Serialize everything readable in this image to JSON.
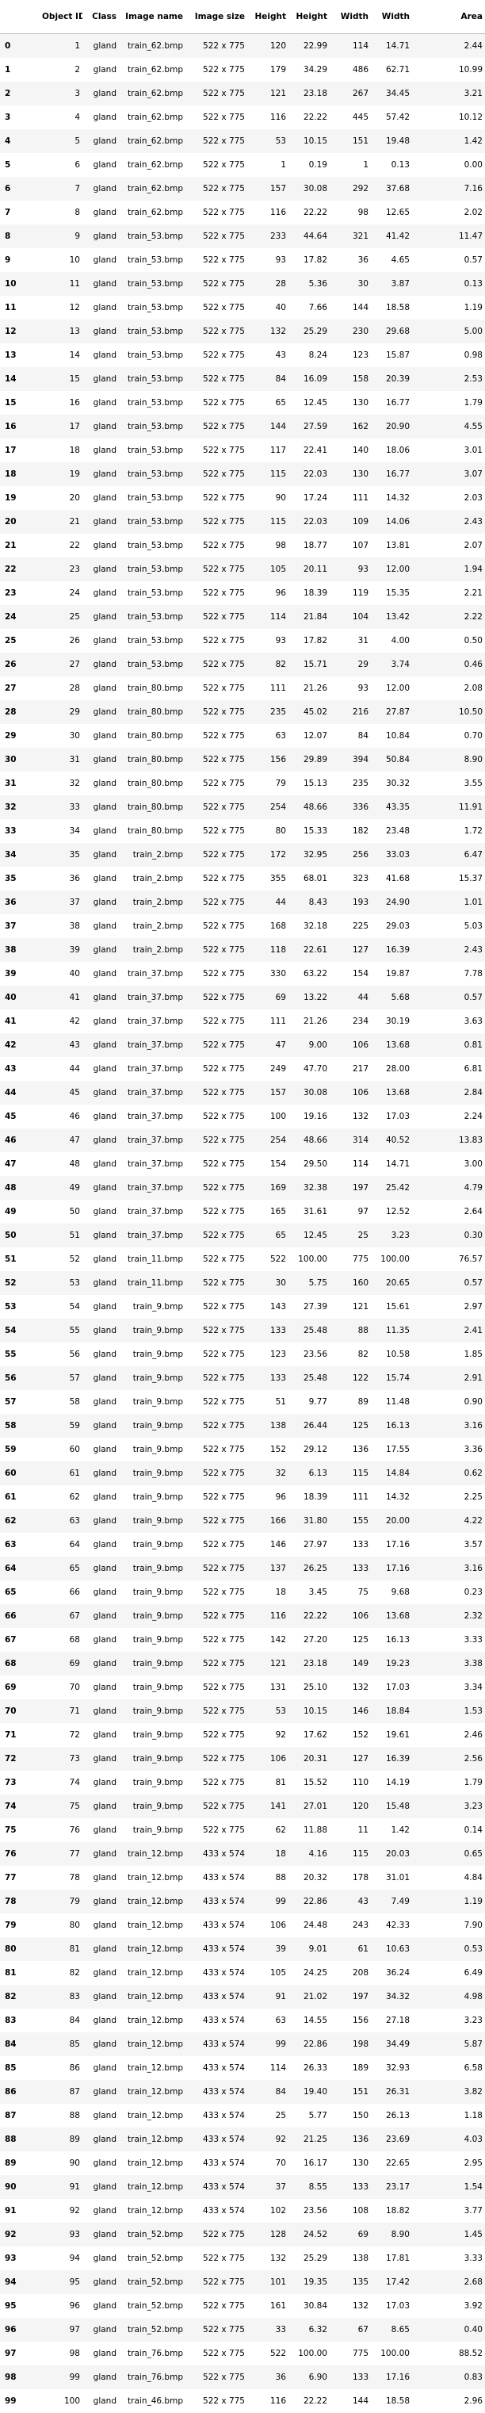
{
  "table": {
    "columns": [
      "",
      "Object ID",
      "Class",
      "Image name",
      "Image size",
      "Height",
      "Height",
      "Width",
      "Width",
      "Area"
    ],
    "rows": [
      [
        "0",
        "1",
        "gland",
        "train_62.bmp",
        "522 x 775",
        "120",
        "22.99",
        "114",
        "14.71",
        "2.44"
      ],
      [
        "1",
        "2",
        "gland",
        "train_62.bmp",
        "522 x 775",
        "179",
        "34.29",
        "486",
        "62.71",
        "10.99"
      ],
      [
        "2",
        "3",
        "gland",
        "train_62.bmp",
        "522 x 775",
        "121",
        "23.18",
        "267",
        "34.45",
        "3.21"
      ],
      [
        "3",
        "4",
        "gland",
        "train_62.bmp",
        "522 x 775",
        "116",
        "22.22",
        "445",
        "57.42",
        "10.12"
      ],
      [
        "4",
        "5",
        "gland",
        "train_62.bmp",
        "522 x 775",
        "53",
        "10.15",
        "151",
        "19.48",
        "1.42"
      ],
      [
        "5",
        "6",
        "gland",
        "train_62.bmp",
        "522 x 775",
        "1",
        "0.19",
        "1",
        "0.13",
        "0.00"
      ],
      [
        "6",
        "7",
        "gland",
        "train_62.bmp",
        "522 x 775",
        "157",
        "30.08",
        "292",
        "37.68",
        "7.16"
      ],
      [
        "7",
        "8",
        "gland",
        "train_62.bmp",
        "522 x 775",
        "116",
        "22.22",
        "98",
        "12.65",
        "2.02"
      ],
      [
        "8",
        "9",
        "gland",
        "train_53.bmp",
        "522 x 775",
        "233",
        "44.64",
        "321",
        "41.42",
        "11.47"
      ],
      [
        "9",
        "10",
        "gland",
        "train_53.bmp",
        "522 x 775",
        "93",
        "17.82",
        "36",
        "4.65",
        "0.57"
      ],
      [
        "10",
        "11",
        "gland",
        "train_53.bmp",
        "522 x 775",
        "28",
        "5.36",
        "30",
        "3.87",
        "0.13"
      ],
      [
        "11",
        "12",
        "gland",
        "train_53.bmp",
        "522 x 775",
        "40",
        "7.66",
        "144",
        "18.58",
        "1.19"
      ],
      [
        "12",
        "13",
        "gland",
        "train_53.bmp",
        "522 x 775",
        "132",
        "25.29",
        "230",
        "29.68",
        "5.00"
      ],
      [
        "13",
        "14",
        "gland",
        "train_53.bmp",
        "522 x 775",
        "43",
        "8.24",
        "123",
        "15.87",
        "0.98"
      ],
      [
        "14",
        "15",
        "gland",
        "train_53.bmp",
        "522 x 775",
        "84",
        "16.09",
        "158",
        "20.39",
        "2.53"
      ],
      [
        "15",
        "16",
        "gland",
        "train_53.bmp",
        "522 x 775",
        "65",
        "12.45",
        "130",
        "16.77",
        "1.79"
      ],
      [
        "16",
        "17",
        "gland",
        "train_53.bmp",
        "522 x 775",
        "144",
        "27.59",
        "162",
        "20.90",
        "4.55"
      ],
      [
        "17",
        "18",
        "gland",
        "train_53.bmp",
        "522 x 775",
        "117",
        "22.41",
        "140",
        "18.06",
        "3.01"
      ],
      [
        "18",
        "19",
        "gland",
        "train_53.bmp",
        "522 x 775",
        "115",
        "22.03",
        "130",
        "16.77",
        "3.07"
      ],
      [
        "19",
        "20",
        "gland",
        "train_53.bmp",
        "522 x 775",
        "90",
        "17.24",
        "111",
        "14.32",
        "2.03"
      ],
      [
        "20",
        "21",
        "gland",
        "train_53.bmp",
        "522 x 775",
        "115",
        "22.03",
        "109",
        "14.06",
        "2.43"
      ],
      [
        "21",
        "22",
        "gland",
        "train_53.bmp",
        "522 x 775",
        "98",
        "18.77",
        "107",
        "13.81",
        "2.07"
      ],
      [
        "22",
        "23",
        "gland",
        "train_53.bmp",
        "522 x 775",
        "105",
        "20.11",
        "93",
        "12.00",
        "1.94"
      ],
      [
        "23",
        "24",
        "gland",
        "train_53.bmp",
        "522 x 775",
        "96",
        "18.39",
        "119",
        "15.35",
        "2.21"
      ],
      [
        "24",
        "25",
        "gland",
        "train_53.bmp",
        "522 x 775",
        "114",
        "21.84",
        "104",
        "13.42",
        "2.22"
      ],
      [
        "25",
        "26",
        "gland",
        "train_53.bmp",
        "522 x 775",
        "93",
        "17.82",
        "31",
        "4.00",
        "0.50"
      ],
      [
        "26",
        "27",
        "gland",
        "train_53.bmp",
        "522 x 775",
        "82",
        "15.71",
        "29",
        "3.74",
        "0.46"
      ],
      [
        "27",
        "28",
        "gland",
        "train_80.bmp",
        "522 x 775",
        "111",
        "21.26",
        "93",
        "12.00",
        "2.08"
      ],
      [
        "28",
        "29",
        "gland",
        "train_80.bmp",
        "522 x 775",
        "235",
        "45.02",
        "216",
        "27.87",
        "10.50"
      ],
      [
        "29",
        "30",
        "gland",
        "train_80.bmp",
        "522 x 775",
        "63",
        "12.07",
        "84",
        "10.84",
        "0.70"
      ],
      [
        "30",
        "31",
        "gland",
        "train_80.bmp",
        "522 x 775",
        "156",
        "29.89",
        "394",
        "50.84",
        "8.90"
      ],
      [
        "31",
        "32",
        "gland",
        "train_80.bmp",
        "522 x 775",
        "79",
        "15.13",
        "235",
        "30.32",
        "3.55"
      ],
      [
        "32",
        "33",
        "gland",
        "train_80.bmp",
        "522 x 775",
        "254",
        "48.66",
        "336",
        "43.35",
        "11.91"
      ],
      [
        "33",
        "34",
        "gland",
        "train_80.bmp",
        "522 x 775",
        "80",
        "15.33",
        "182",
        "23.48",
        "1.72"
      ],
      [
        "34",
        "35",
        "gland",
        "train_2.bmp",
        "522 x 775",
        "172",
        "32.95",
        "256",
        "33.03",
        "6.47"
      ],
      [
        "35",
        "36",
        "gland",
        "train_2.bmp",
        "522 x 775",
        "355",
        "68.01",
        "323",
        "41.68",
        "15.37"
      ],
      [
        "36",
        "37",
        "gland",
        "train_2.bmp",
        "522 x 775",
        "44",
        "8.43",
        "193",
        "24.90",
        "1.01"
      ],
      [
        "37",
        "38",
        "gland",
        "train_2.bmp",
        "522 x 775",
        "168",
        "32.18",
        "225",
        "29.03",
        "5.03"
      ],
      [
        "38",
        "39",
        "gland",
        "train_2.bmp",
        "522 x 775",
        "118",
        "22.61",
        "127",
        "16.39",
        "2.43"
      ],
      [
        "39",
        "40",
        "gland",
        "train_37.bmp",
        "522 x 775",
        "330",
        "63.22",
        "154",
        "19.87",
        "7.78"
      ],
      [
        "40",
        "41",
        "gland",
        "train_37.bmp",
        "522 x 775",
        "69",
        "13.22",
        "44",
        "5.68",
        "0.57"
      ],
      [
        "41",
        "42",
        "gland",
        "train_37.bmp",
        "522 x 775",
        "111",
        "21.26",
        "234",
        "30.19",
        "3.63"
      ],
      [
        "42",
        "43",
        "gland",
        "train_37.bmp",
        "522 x 775",
        "47",
        "9.00",
        "106",
        "13.68",
        "0.81"
      ],
      [
        "43",
        "44",
        "gland",
        "train_37.bmp",
        "522 x 775",
        "249",
        "47.70",
        "217",
        "28.00",
        "6.81"
      ],
      [
        "44",
        "45",
        "gland",
        "train_37.bmp",
        "522 x 775",
        "157",
        "30.08",
        "106",
        "13.68",
        "2.84"
      ],
      [
        "45",
        "46",
        "gland",
        "train_37.bmp",
        "522 x 775",
        "100",
        "19.16",
        "132",
        "17.03",
        "2.24"
      ],
      [
        "46",
        "47",
        "gland",
        "train_37.bmp",
        "522 x 775",
        "254",
        "48.66",
        "314",
        "40.52",
        "13.83"
      ],
      [
        "47",
        "48",
        "gland",
        "train_37.bmp",
        "522 x 775",
        "154",
        "29.50",
        "114",
        "14.71",
        "3.00"
      ],
      [
        "48",
        "49",
        "gland",
        "train_37.bmp",
        "522 x 775",
        "169",
        "32.38",
        "197",
        "25.42",
        "4.79"
      ],
      [
        "49",
        "50",
        "gland",
        "train_37.bmp",
        "522 x 775",
        "165",
        "31.61",
        "97",
        "12.52",
        "2.64"
      ],
      [
        "50",
        "51",
        "gland",
        "train_37.bmp",
        "522 x 775",
        "65",
        "12.45",
        "25",
        "3.23",
        "0.30"
      ],
      [
        "51",
        "52",
        "gland",
        "train_11.bmp",
        "522 x 775",
        "522",
        "100.00",
        "775",
        "100.00",
        "76.57"
      ],
      [
        "52",
        "53",
        "gland",
        "train_11.bmp",
        "522 x 775",
        "30",
        "5.75",
        "160",
        "20.65",
        "0.57"
      ],
      [
        "53",
        "54",
        "gland",
        "train_9.bmp",
        "522 x 775",
        "143",
        "27.39",
        "121",
        "15.61",
        "2.97"
      ],
      [
        "54",
        "55",
        "gland",
        "train_9.bmp",
        "522 x 775",
        "133",
        "25.48",
        "88",
        "11.35",
        "2.41"
      ],
      [
        "55",
        "56",
        "gland",
        "train_9.bmp",
        "522 x 775",
        "123",
        "23.56",
        "82",
        "10.58",
        "1.85"
      ],
      [
        "56",
        "57",
        "gland",
        "train_9.bmp",
        "522 x 775",
        "133",
        "25.48",
        "122",
        "15.74",
        "2.91"
      ],
      [
        "57",
        "58",
        "gland",
        "train_9.bmp",
        "522 x 775",
        "51",
        "9.77",
        "89",
        "11.48",
        "0.90"
      ],
      [
        "58",
        "59",
        "gland",
        "train_9.bmp",
        "522 x 775",
        "138",
        "26.44",
        "125",
        "16.13",
        "3.16"
      ],
      [
        "59",
        "60",
        "gland",
        "train_9.bmp",
        "522 x 775",
        "152",
        "29.12",
        "136",
        "17.55",
        "3.36"
      ],
      [
        "60",
        "61",
        "gland",
        "train_9.bmp",
        "522 x 775",
        "32",
        "6.13",
        "115",
        "14.84",
        "0.62"
      ],
      [
        "61",
        "62",
        "gland",
        "train_9.bmp",
        "522 x 775",
        "96",
        "18.39",
        "111",
        "14.32",
        "2.25"
      ],
      [
        "62",
        "63",
        "gland",
        "train_9.bmp",
        "522 x 775",
        "166",
        "31.80",
        "155",
        "20.00",
        "4.22"
      ],
      [
        "63",
        "64",
        "gland",
        "train_9.bmp",
        "522 x 775",
        "146",
        "27.97",
        "133",
        "17.16",
        "3.57"
      ],
      [
        "64",
        "65",
        "gland",
        "train_9.bmp",
        "522 x 775",
        "137",
        "26.25",
        "133",
        "17.16",
        "3.16"
      ],
      [
        "65",
        "66",
        "gland",
        "train_9.bmp",
        "522 x 775",
        "18",
        "3.45",
        "75",
        "9.68",
        "0.23"
      ],
      [
        "66",
        "67",
        "gland",
        "train_9.bmp",
        "522 x 775",
        "116",
        "22.22",
        "106",
        "13.68",
        "2.32"
      ],
      [
        "67",
        "68",
        "gland",
        "train_9.bmp",
        "522 x 775",
        "142",
        "27.20",
        "125",
        "16.13",
        "3.33"
      ],
      [
        "68",
        "69",
        "gland",
        "train_9.bmp",
        "522 x 775",
        "121",
        "23.18",
        "149",
        "19.23",
        "3.38"
      ],
      [
        "69",
        "70",
        "gland",
        "train_9.bmp",
        "522 x 775",
        "131",
        "25.10",
        "132",
        "17.03",
        "3.34"
      ],
      [
        "70",
        "71",
        "gland",
        "train_9.bmp",
        "522 x 775",
        "53",
        "10.15",
        "146",
        "18.84",
        "1.53"
      ],
      [
        "71",
        "72",
        "gland",
        "train_9.bmp",
        "522 x 775",
        "92",
        "17.62",
        "152",
        "19.61",
        "2.46"
      ],
      [
        "72",
        "73",
        "gland",
        "train_9.bmp",
        "522 x 775",
        "106",
        "20.31",
        "127",
        "16.39",
        "2.56"
      ],
      [
        "73",
        "74",
        "gland",
        "train_9.bmp",
        "522 x 775",
        "81",
        "15.52",
        "110",
        "14.19",
        "1.79"
      ],
      [
        "74",
        "75",
        "gland",
        "train_9.bmp",
        "522 x 775",
        "141",
        "27.01",
        "120",
        "15.48",
        "3.23"
      ],
      [
        "75",
        "76",
        "gland",
        "train_9.bmp",
        "522 x 775",
        "62",
        "11.88",
        "11",
        "1.42",
        "0.14"
      ],
      [
        "76",
        "77",
        "gland",
        "train_12.bmp",
        "433 x 574",
        "18",
        "4.16",
        "115",
        "20.03",
        "0.65"
      ],
      [
        "77",
        "78",
        "gland",
        "train_12.bmp",
        "433 x 574",
        "88",
        "20.32",
        "178",
        "31.01",
        "4.84"
      ],
      [
        "78",
        "79",
        "gland",
        "train_12.bmp",
        "433 x 574",
        "99",
        "22.86",
        "43",
        "7.49",
        "1.19"
      ],
      [
        "79",
        "80",
        "gland",
        "train_12.bmp",
        "433 x 574",
        "106",
        "24.48",
        "243",
        "42.33",
        "7.90"
      ],
      [
        "80",
        "81",
        "gland",
        "train_12.bmp",
        "433 x 574",
        "39",
        "9.01",
        "61",
        "10.63",
        "0.53"
      ],
      [
        "81",
        "82",
        "gland",
        "train_12.bmp",
        "433 x 574",
        "105",
        "24.25",
        "208",
        "36.24",
        "6.49"
      ],
      [
        "82",
        "83",
        "gland",
        "train_12.bmp",
        "433 x 574",
        "91",
        "21.02",
        "197",
        "34.32",
        "4.98"
      ],
      [
        "83",
        "84",
        "gland",
        "train_12.bmp",
        "433 x 574",
        "63",
        "14.55",
        "156",
        "27.18",
        "3.23"
      ],
      [
        "84",
        "85",
        "gland",
        "train_12.bmp",
        "433 x 574",
        "99",
        "22.86",
        "198",
        "34.49",
        "5.87"
      ],
      [
        "85",
        "86",
        "gland",
        "train_12.bmp",
        "433 x 574",
        "114",
        "26.33",
        "189",
        "32.93",
        "6.58"
      ],
      [
        "86",
        "87",
        "gland",
        "train_12.bmp",
        "433 x 574",
        "84",
        "19.40",
        "151",
        "26.31",
        "3.82"
      ],
      [
        "87",
        "88",
        "gland",
        "train_12.bmp",
        "433 x 574",
        "25",
        "5.77",
        "150",
        "26.13",
        "1.18"
      ],
      [
        "88",
        "89",
        "gland",
        "train_12.bmp",
        "433 x 574",
        "92",
        "21.25",
        "136",
        "23.69",
        "4.03"
      ],
      [
        "89",
        "90",
        "gland",
        "train_12.bmp",
        "433 x 574",
        "70",
        "16.17",
        "130",
        "22.65",
        "2.95"
      ],
      [
        "90",
        "91",
        "gland",
        "train_12.bmp",
        "433 x 574",
        "37",
        "8.55",
        "133",
        "23.17",
        "1.54"
      ],
      [
        "91",
        "92",
        "gland",
        "train_12.bmp",
        "433 x 574",
        "102",
        "23.56",
        "108",
        "18.82",
        "3.77"
      ],
      [
        "92",
        "93",
        "gland",
        "train_52.bmp",
        "522 x 775",
        "128",
        "24.52",
        "69",
        "8.90",
        "1.45"
      ],
      [
        "93",
        "94",
        "gland",
        "train_52.bmp",
        "522 x 775",
        "132",
        "25.29",
        "138",
        "17.81",
        "3.33"
      ],
      [
        "94",
        "95",
        "gland",
        "train_52.bmp",
        "522 x 775",
        "101",
        "19.35",
        "135",
        "17.42",
        "2.68"
      ],
      [
        "95",
        "96",
        "gland",
        "train_52.bmp",
        "522 x 775",
        "161",
        "30.84",
        "132",
        "17.03",
        "3.92"
      ],
      [
        "96",
        "97",
        "gland",
        "train_52.bmp",
        "522 x 775",
        "33",
        "6.32",
        "67",
        "8.65",
        "0.40"
      ],
      [
        "97",
        "98",
        "gland",
        "train_76.bmp",
        "522 x 775",
        "522",
        "100.00",
        "775",
        "100.00",
        "88.52"
      ],
      [
        "98",
        "99",
        "gland",
        "train_76.bmp",
        "522 x 775",
        "36",
        "6.90",
        "133",
        "17.16",
        "0.83"
      ],
      [
        "99",
        "100",
        "gland",
        "train_46.bmp",
        "522 x 775",
        "116",
        "22.22",
        "144",
        "18.58",
        "2.96"
      ]
    ]
  }
}
